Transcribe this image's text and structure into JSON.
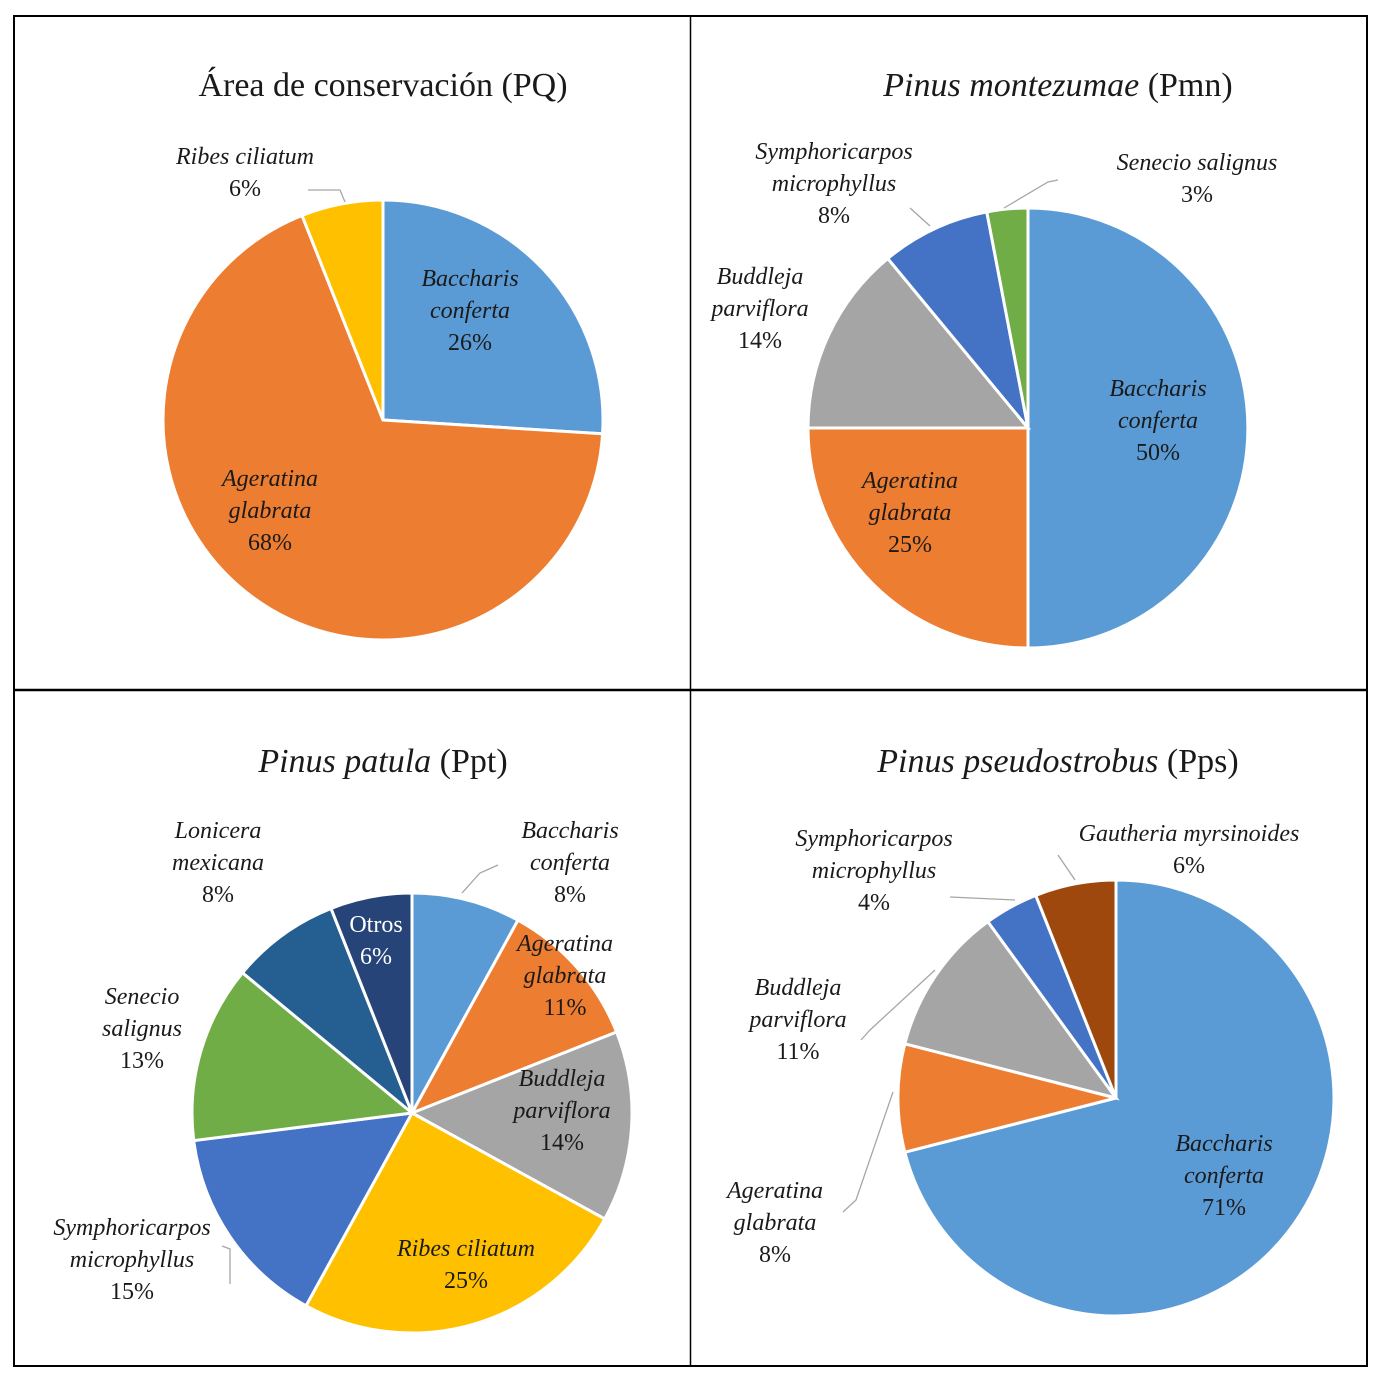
{
  "chart_data": [
    {
      "type": "pie",
      "title_parts": [
        {
          "text": "Área de conservación",
          "italic": false
        },
        {
          "text": " (PQ)",
          "italic": false
        }
      ],
      "slices": [
        {
          "name": "Baccharis conferta",
          "label_lines": [
            "Baccharis",
            "conferta"
          ],
          "value": 26,
          "pct_text": "26%",
          "color": "#5b9bd5",
          "label_position": "inside"
        },
        {
          "name": "Ageratina glabrata",
          "label_lines": [
            "Ageratina",
            "glabrata"
          ],
          "value": 68,
          "pct_text": "68%",
          "color": "#ed7d31",
          "label_position": "inside"
        },
        {
          "name": "Ribes ciliatum",
          "label_lines": [
            "Ribes ciliatum"
          ],
          "value": 6,
          "pct_text": "6%",
          "color": "#ffc000",
          "label_position": "outside-top-left"
        }
      ]
    },
    {
      "type": "pie",
      "title_parts": [
        {
          "text": "Pinus montezumae",
          "italic": true
        },
        {
          "text": " (Pmn)",
          "italic": false
        }
      ],
      "slices": [
        {
          "name": "Baccharis conferta",
          "label_lines": [
            "Baccharis",
            "conferta"
          ],
          "value": 50,
          "pct_text": "50%",
          "color": "#5b9bd5",
          "label_position": "inside"
        },
        {
          "name": "Ageratina glabrata",
          "label_lines": [
            "Ageratina",
            "glabrata"
          ],
          "value": 25,
          "pct_text": "25%",
          "color": "#ed7d31",
          "label_position": "inside"
        },
        {
          "name": "Buddleja parviflora",
          "label_lines": [
            "Buddleja",
            "parviflora"
          ],
          "value": 14,
          "pct_text": "14%",
          "color": "#a5a5a5",
          "label_position": "outside-left"
        },
        {
          "name": "Symphoricarpos microphyllus",
          "label_lines": [
            "Symphoricarpos",
            "microphyllus"
          ],
          "value": 8,
          "pct_text": "8%",
          "color": "#4472c4",
          "label_position": "outside-top-left"
        },
        {
          "name": "Senecio salignus",
          "label_lines": [
            "Senecio salignus"
          ],
          "value": 3,
          "pct_text": "3%",
          "color": "#70ad47",
          "label_position": "outside-top-right"
        }
      ]
    },
    {
      "type": "pie",
      "title_parts": [
        {
          "text": "Pinus patula",
          "italic": true
        },
        {
          "text": " (Ppt)",
          "italic": false
        }
      ],
      "slices": [
        {
          "name": "Baccharis conferta",
          "label_lines": [
            "Baccharis",
            "conferta"
          ],
          "value": 8,
          "pct_text": "8%",
          "color": "#5b9bd5",
          "label_position": "outside-top-right"
        },
        {
          "name": "Ageratina glabrata",
          "label_lines": [
            "Ageratina",
            "glabrata"
          ],
          "value": 11,
          "pct_text": "11%",
          "color": "#ed7d31",
          "label_position": "inside"
        },
        {
          "name": "Buddleja parviflora",
          "label_lines": [
            "Buddleja",
            "parviflora"
          ],
          "value": 14,
          "pct_text": "14%",
          "color": "#a5a5a5",
          "label_position": "inside"
        },
        {
          "name": "Ribes ciliatum",
          "label_lines": [
            "Ribes ciliatum"
          ],
          "value": 25,
          "pct_text": "25%",
          "color": "#ffc000",
          "label_position": "inside"
        },
        {
          "name": "Symphoricarpos microphyllus",
          "label_lines": [
            "Symphoricarpos",
            "microphyllus"
          ],
          "value": 15,
          "pct_text": "15%",
          "color": "#4472c4",
          "label_position": "outside-bottom-left"
        },
        {
          "name": "Senecio salignus",
          "label_lines": [
            "Senecio",
            "salignus"
          ],
          "value": 13,
          "pct_text": "13%",
          "color": "#70ad47",
          "label_position": "outside-left"
        },
        {
          "name": "Lonicera mexicana",
          "label_lines": [
            "Lonicera",
            "mexicana"
          ],
          "value": 8,
          "pct_text": "8%",
          "color": "#255e91",
          "label_position": "outside-top-left"
        },
        {
          "name": "Otros",
          "label_lines": [
            "Otros"
          ],
          "value": 6,
          "pct_text": "6%",
          "color": "#264478",
          "label_position": "inside",
          "upright": true
        }
      ]
    },
    {
      "type": "pie",
      "title_parts": [
        {
          "text": "Pinus pseudostrobus",
          "italic": true
        },
        {
          "text": " (Pps)",
          "italic": false
        }
      ],
      "slices": [
        {
          "name": "Baccharis conferta",
          "label_lines": [
            "Baccharis",
            "conferta"
          ],
          "value": 71,
          "pct_text": "71%",
          "color": "#5b9bd5",
          "label_position": "inside"
        },
        {
          "name": "Ageratina glabrata",
          "label_lines": [
            "Ageratina",
            "glabrata"
          ],
          "value": 8,
          "pct_text": "8%",
          "color": "#ed7d31",
          "label_position": "outside-bottom-left"
        },
        {
          "name": "Buddleja parviflora",
          "label_lines": [
            "Buddleja",
            "parviflora"
          ],
          "value": 11,
          "pct_text": "11%",
          "color": "#a5a5a5",
          "label_position": "outside-left"
        },
        {
          "name": "Symphoricarpos microphyllus",
          "label_lines": [
            "Symphoricarpos",
            "microphyllus"
          ],
          "value": 4,
          "pct_text": "4%",
          "color": "#4472c4",
          "label_position": "outside-top-left"
        },
        {
          "name": "Gautheria myrsinoides",
          "label_lines": [
            "Gautheria myrsinoides"
          ],
          "value": 6,
          "pct_text": "6%",
          "color": "#9e480e",
          "label_position": "outside-top"
        }
      ]
    }
  ]
}
